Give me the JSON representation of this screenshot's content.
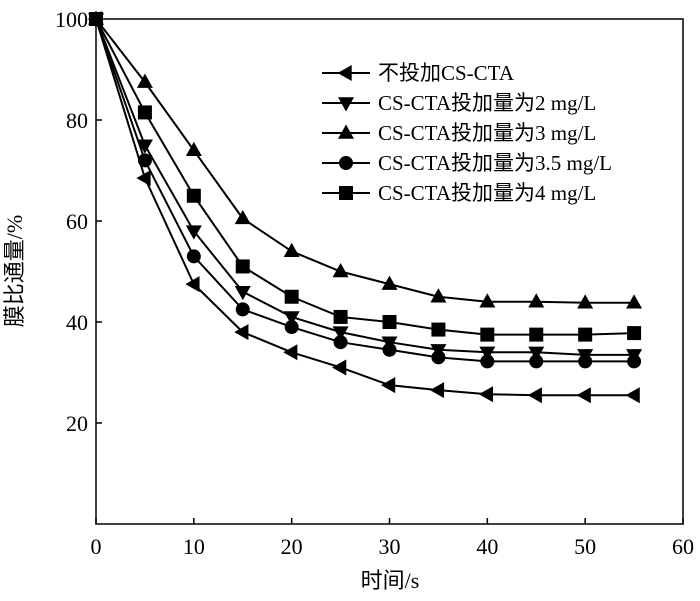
{
  "chart_data": {
    "type": "line",
    "xlabel": "时间/s",
    "ylabel": "膜比通量/%",
    "xlim": [
      0,
      60
    ],
    "ylim": [
      0,
      100
    ],
    "xticks": [
      0,
      10,
      20,
      30,
      40,
      50,
      60
    ],
    "yticks": [
      20,
      40,
      60,
      80,
      100
    ],
    "grid": false,
    "legend_position": "top-right",
    "line_color": "#000000",
    "series": [
      {
        "name": "不投加CS-CTA",
        "marker": "triangle-left",
        "x": [
          0,
          5,
          10,
          15,
          20,
          25,
          30,
          35,
          40,
          45,
          50,
          55
        ],
        "y": [
          100,
          68.5,
          47.5,
          38,
          34,
          31,
          27.5,
          26.5,
          25.7,
          25.5,
          25.5,
          25.5
        ]
      },
      {
        "name": "CS-CTA投加量为2 mg/L",
        "marker": "triangle-down",
        "x": [
          0,
          5,
          10,
          15,
          20,
          25,
          30,
          35,
          40,
          45,
          50,
          55
        ],
        "y": [
          100,
          75,
          58,
          46,
          41,
          38,
          36,
          34.5,
          34,
          34,
          33.5,
          33.5
        ]
      },
      {
        "name": "CS-CTA投加量为3 mg/L",
        "marker": "triangle-up",
        "x": [
          0,
          5,
          10,
          15,
          20,
          25,
          30,
          35,
          40,
          45,
          50,
          55
        ],
        "y": [
          100,
          87.5,
          74,
          60.5,
          54,
          50,
          47.5,
          45,
          44,
          44,
          43.8,
          43.8
        ]
      },
      {
        "name": "CS-CTA投加量为3.5 mg/L",
        "marker": "circle",
        "x": [
          0,
          5,
          10,
          15,
          20,
          25,
          30,
          35,
          40,
          45,
          50,
          55
        ],
        "y": [
          100,
          72,
          53,
          42.5,
          39,
          36,
          34.5,
          33,
          32.2,
          32.2,
          32.2,
          32.2
        ]
      },
      {
        "name": "CS-CTA投加量为4 mg/L",
        "marker": "square",
        "x": [
          0,
          5,
          10,
          15,
          20,
          25,
          30,
          35,
          40,
          45,
          50,
          55
        ],
        "y": [
          100,
          81.5,
          65,
          51,
          45,
          41,
          40,
          38.5,
          37.5,
          37.5,
          37.5,
          37.8
        ]
      }
    ]
  }
}
